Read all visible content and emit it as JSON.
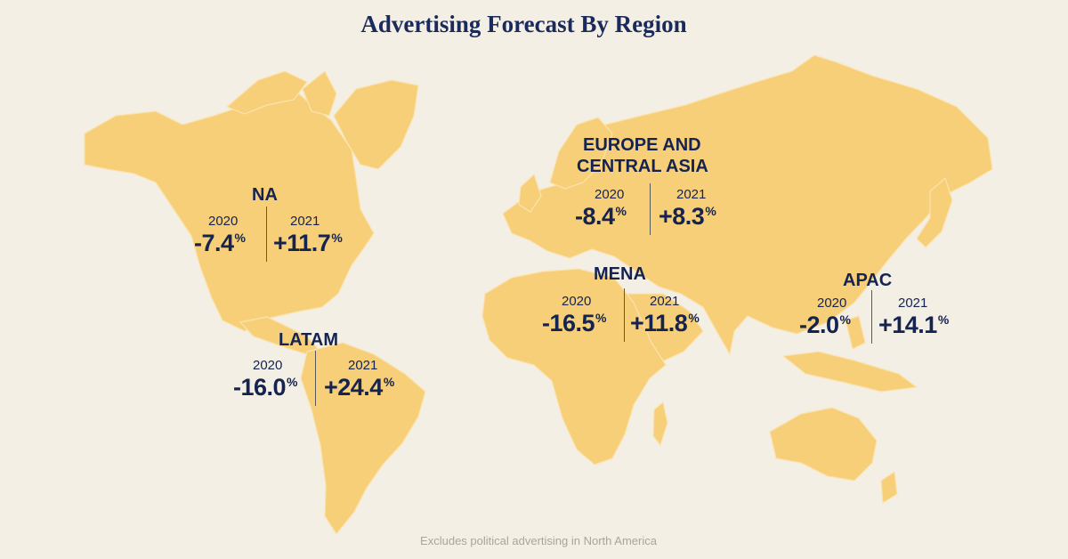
{
  "title": "Advertising Forecast By Region",
  "footnote": "Excludes political advertising in North America",
  "colors": {
    "land": "#f6cf78",
    "background": "#f3efe4",
    "text": "#14234f"
  },
  "regions": {
    "na": {
      "name": "NA",
      "year1": "2020",
      "value1": "-7.4",
      "pct1": "%",
      "year2": "2021",
      "value2": "+11.7",
      "pct2": "%"
    },
    "latam": {
      "name": "LATAM",
      "year1": "2020",
      "value1": "-16.0",
      "pct1": "%",
      "year2": "2021",
      "value2": "+24.4",
      "pct2": "%"
    },
    "eca": {
      "name_line1": "EUROPE AND",
      "name_line2": "CENTRAL ASIA",
      "year1": "2020",
      "value1": "-8.4",
      "pct1": "%",
      "year2": "2021",
      "value2": "+8.3",
      "pct2": "%"
    },
    "mena": {
      "name": "MENA",
      "year1": "2020",
      "value1": "-16.5",
      "pct1": "%",
      "year2": "2021",
      "value2": "+11.8",
      "pct2": "%"
    },
    "apac": {
      "name": "APAC",
      "year1": "2020",
      "value1": "-2.0",
      "pct1": "%",
      "year2": "2021",
      "value2": "+14.1",
      "pct2": "%"
    }
  }
}
